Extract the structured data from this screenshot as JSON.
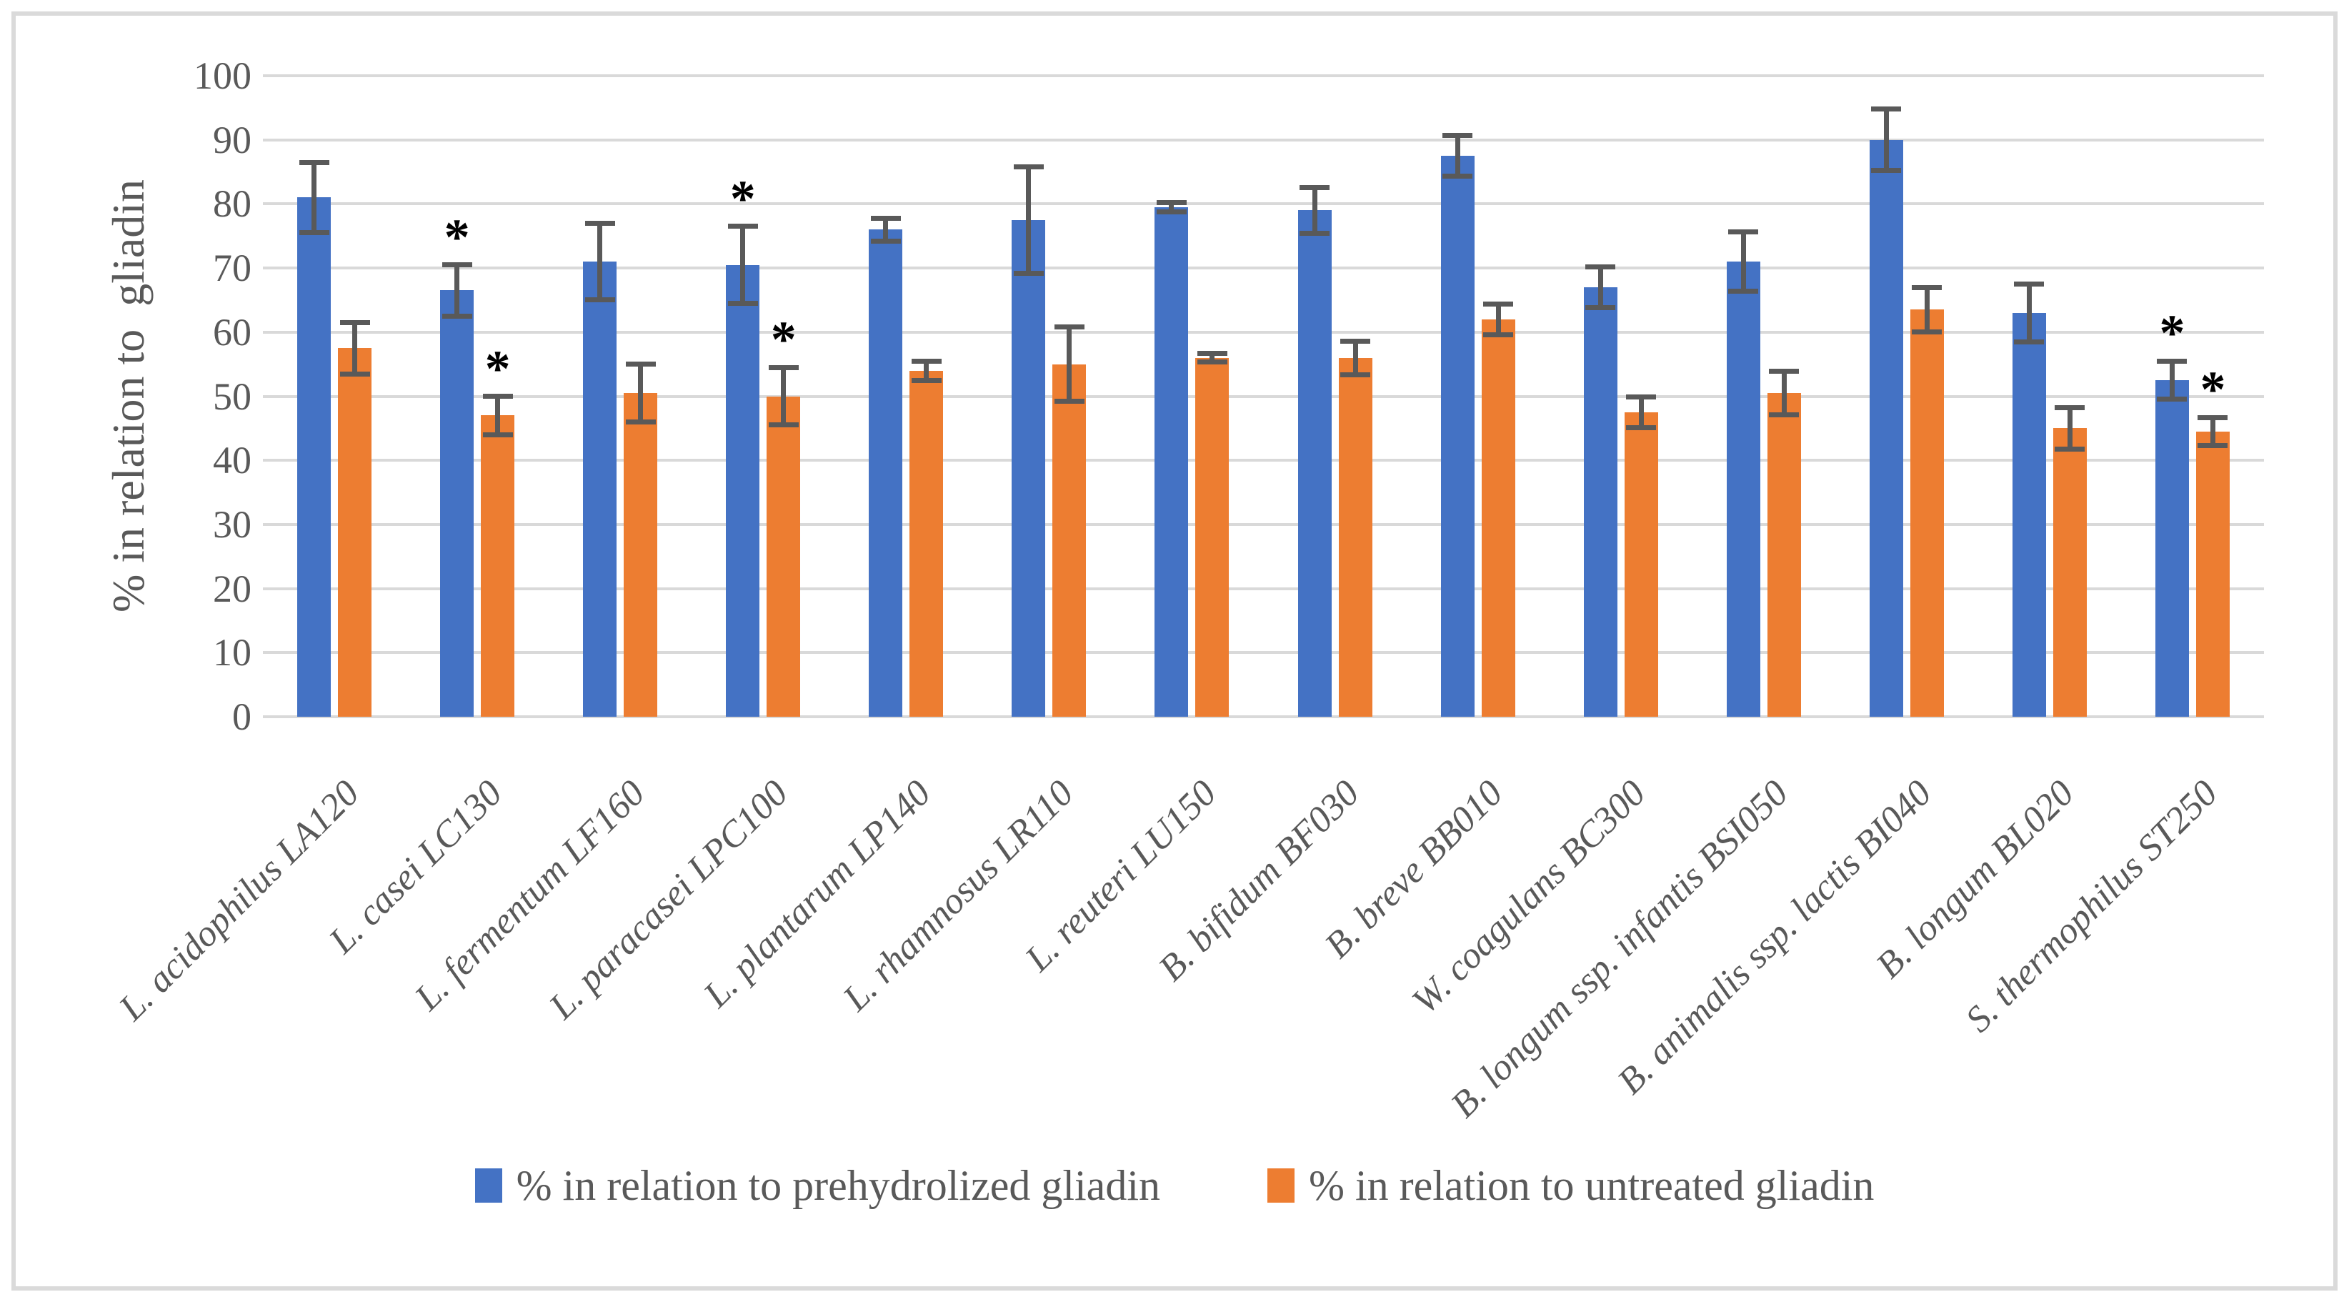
{
  "figure": {
    "background": "#FFFFFF",
    "border_color": "#DADADA"
  },
  "y_axis": {
    "title": "% in relation to  gliadin",
    "ticks": [
      0,
      10,
      20,
      30,
      40,
      50,
      60,
      70,
      80,
      90,
      100
    ],
    "min": 0,
    "max": 100
  },
  "legend": {
    "items": [
      {
        "label": "% in relation to prehydrolized gliadin",
        "color": "#4472C4"
      },
      {
        "label": "% in relation to untreated gliadin",
        "color": "#ED7D31"
      }
    ]
  },
  "annotations": {
    "significance_marker": "*"
  },
  "colors": {
    "gridline": "#D9D9D9",
    "error_bar": "#595959",
    "text": "#595959",
    "asterisk": "#000000"
  },
  "chart_data": {
    "type": "bar",
    "title": "",
    "xlabel": "",
    "ylabel": "% in relation to  gliadin",
    "ylim": [
      0,
      100
    ],
    "grid": "horizontal",
    "legend_position": "bottom",
    "categories": [
      "L. acidophilus LA120",
      "L. casei LC130",
      "L. fermentum LF160",
      "L. paracasei LPC100",
      "L. plantarum LP140",
      "L. rhamnosus LR110",
      "L. reuteri LU150",
      "B. bifidum BF030",
      "B. breve BB010",
      "W. coagulans BC300",
      "B. longum ssp. infantis BSI050",
      "B. animalis ssp. lactis BI040",
      "B. longum BL020",
      "S. thermophilus ST250"
    ],
    "series": [
      {
        "name": "% in relation to prehydrolized gliadin",
        "color": "#4472C4",
        "values": [
          81,
          66.5,
          71,
          70.5,
          76,
          77.5,
          79.5,
          79,
          87.5,
          67,
          71,
          90,
          63,
          52.5
        ],
        "errors": [
          5.5,
          4,
          6,
          6,
          1.8,
          8.3,
          0.7,
          3.6,
          3.2,
          3.2,
          4.6,
          4.8,
          4.5,
          3
        ],
        "significant": [
          false,
          true,
          false,
          true,
          false,
          false,
          false,
          false,
          false,
          false,
          false,
          false,
          false,
          true
        ]
      },
      {
        "name": "% in relation to untreated gliadin",
        "color": "#ED7D31",
        "values": [
          57.5,
          47,
          50.5,
          50,
          54,
          55,
          56,
          56,
          62,
          47.5,
          50.5,
          63.5,
          45,
          44.5
        ],
        "errors": [
          4,
          3,
          4.5,
          4.5,
          1.5,
          5.8,
          0.7,
          2.6,
          2.4,
          2.4,
          3.4,
          3.5,
          3.2,
          2.2
        ],
        "significant": [
          false,
          true,
          false,
          true,
          false,
          false,
          false,
          false,
          false,
          false,
          false,
          false,
          false,
          true
        ]
      }
    ]
  }
}
